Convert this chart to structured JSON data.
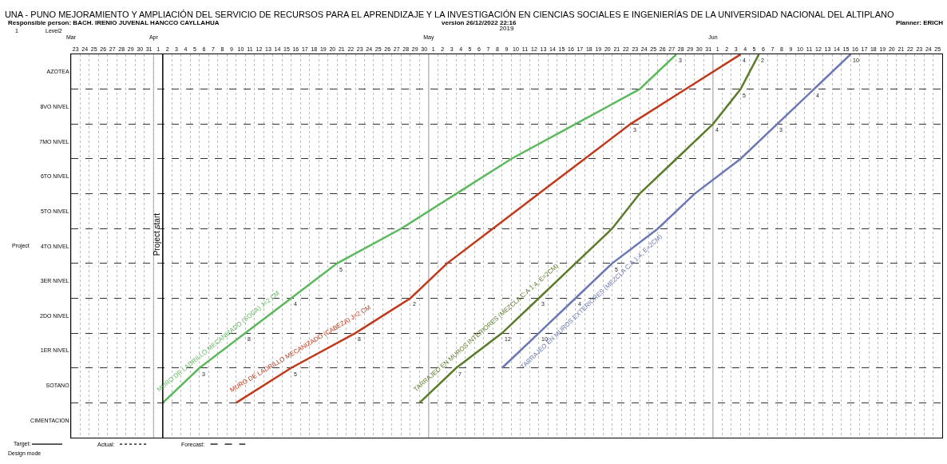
{
  "chart_data": {
    "type": "line",
    "title": "UNA - PUNO MEJORAMIENTO Y AMPLIACIÓN DEL SERVICIO DE RECURSOS PARA EL APRENDIZAJE Y LA INVESTIGACIÓN EN CIENCIAS SOCIALES E INGENIERÍAS DE LA UNIVERSIDAD NACIONAL DEL ALTIPLANO",
    "annotations": [
      "Responsible person: BACH. IRENIO JUVENAL HANCCO CAYLLAHUA",
      "version 26/12/2022 22:16",
      "Planner: ERICH",
      "1",
      "Level2",
      "Project",
      "Target:",
      "Actual:",
      "Forecast:",
      "Design mode",
      {
        "text": "3",
        "x": "2019-04-06",
        "y": 1
      },
      {
        "text": "8",
        "x": "2019-04-11",
        "y": 2
      },
      {
        "text": "4",
        "x": "2019-04-16",
        "y": 3
      },
      {
        "text": "5",
        "x": "2019-04-21",
        "y": 4
      },
      {
        "text": "3",
        "x": "2019-05-28",
        "y": 10
      },
      {
        "text": "5",
        "x": "2019-04-16",
        "y": 1
      },
      {
        "text": "8",
        "x": "2019-04-23",
        "y": 2
      },
      {
        "text": "2",
        "x": "2019-04-29",
        "y": 3
      },
      {
        "text": "3",
        "x": "2019-05-23",
        "y": 8
      },
      {
        "text": "4",
        "x": "2019-06-04",
        "y": 10
      },
      {
        "text": "7",
        "x": "2019-05-04",
        "y": 1
      },
      {
        "text": "12",
        "x": "2019-05-09",
        "y": 2
      },
      {
        "text": "3",
        "x": "2019-05-13",
        "y": 3
      },
      {
        "text": "4",
        "x": "2019-06-01",
        "y": 8
      },
      {
        "text": "5",
        "x": "2019-06-04",
        "y": 9
      },
      {
        "text": "2",
        "x": "2019-06-06",
        "y": 10
      },
      {
        "text": "10",
        "x": "2019-05-13",
        "y": 2
      },
      {
        "text": "4",
        "x": "2019-05-17",
        "y": 3
      },
      {
        "text": "5",
        "x": "2019-05-21",
        "y": 4
      },
      {
        "text": "3",
        "x": "2019-06-08",
        "y": 8
      },
      {
        "text": "4",
        "x": "2019-06-12",
        "y": 9
      },
      {
        "text": "10",
        "x": "2019-06-16",
        "y": 10
      }
    ],
    "x2label": "2019",
    "xlim": [
      "2019-03-23",
      "2019-06-26"
    ],
    "x2lim": [
      "2019-03-23",
      "2019-06-26"
    ],
    "x2ticks": [
      {
        "value": "2019-03-23",
        "label": "Mar"
      },
      {
        "value": "2019-04-01",
        "label": "Apr"
      },
      {
        "value": "2019-05-01",
        "label": "May"
      },
      {
        "value": "2019-06-01",
        "label": "Jun"
      }
    ],
    "xticks": [
      {
        "value": "2019-03-23T12:00",
        "label": "23"
      },
      {
        "value": "2019-03-24T12:00",
        "label": "24"
      },
      {
        "value": "2019-03-25T12:00",
        "label": "25"
      },
      {
        "value": "2019-03-26T12:00",
        "label": "26"
      },
      {
        "value": "2019-03-27T12:00",
        "label": "27"
      },
      {
        "value": "2019-03-28T12:00",
        "label": "28"
      },
      {
        "value": "2019-03-29T12:00",
        "label": "29"
      },
      {
        "value": "2019-03-30T12:00",
        "label": "30"
      },
      {
        "value": "2019-03-31T12:00",
        "label": "31"
      },
      {
        "value": "2019-04-01T12:00",
        "label": "1"
      },
      {
        "value": "2019-04-02T12:00",
        "label": "2"
      },
      {
        "value": "2019-04-03T12:00",
        "label": "3"
      },
      {
        "value": "2019-04-04T12:00",
        "label": "4"
      },
      {
        "value": "2019-04-05T12:00",
        "label": "5"
      },
      {
        "value": "2019-04-06T12:00",
        "label": "6"
      },
      {
        "value": "2019-04-07T12:00",
        "label": "7"
      },
      {
        "value": "2019-04-08T12:00",
        "label": "8"
      },
      {
        "value": "2019-04-09T12:00",
        "label": "9"
      },
      {
        "value": "2019-04-10T12:00",
        "label": "10"
      },
      {
        "value": "2019-04-11T12:00",
        "label": "11"
      },
      {
        "value": "2019-04-12T12:00",
        "label": "12"
      },
      {
        "value": "2019-04-13T12:00",
        "label": "13"
      },
      {
        "value": "2019-04-14T12:00",
        "label": "14"
      },
      {
        "value": "2019-04-15T12:00",
        "label": "15"
      },
      {
        "value": "2019-04-16T12:00",
        "label": "16"
      },
      {
        "value": "2019-04-17T12:00",
        "label": "17"
      },
      {
        "value": "2019-04-18T12:00",
        "label": "18"
      },
      {
        "value": "2019-04-19T12:00",
        "label": "19"
      },
      {
        "value": "2019-04-20T12:00",
        "label": "20"
      },
      {
        "value": "2019-04-21T12:00",
        "label": "21"
      },
      {
        "value": "2019-04-22T12:00",
        "label": "22"
      },
      {
        "value": "2019-04-23T12:00",
        "label": "23"
      },
      {
        "value": "2019-04-24T12:00",
        "label": "24"
      },
      {
        "value": "2019-04-25T12:00",
        "label": "25"
      },
      {
        "value": "2019-04-26T12:00",
        "label": "26"
      },
      {
        "value": "2019-04-27T12:00",
        "label": "27"
      },
      {
        "value": "2019-04-28T12:00",
        "label": "28"
      },
      {
        "value": "2019-04-29T12:00",
        "label": "29"
      },
      {
        "value": "2019-04-30T12:00",
        "label": "30"
      },
      {
        "value": "2019-05-01T12:00",
        "label": "1"
      },
      {
        "value": "2019-05-02T12:00",
        "label": "2"
      },
      {
        "value": "2019-05-03T12:00",
        "label": "3"
      },
      {
        "value": "2019-05-04T12:00",
        "label": "4"
      },
      {
        "value": "2019-05-05T12:00",
        "label": "5"
      },
      {
        "value": "2019-05-06T12:00",
        "label": "6"
      },
      {
        "value": "2019-05-07T12:00",
        "label": "7"
      },
      {
        "value": "2019-05-08T12:00",
        "label": "8"
      },
      {
        "value": "2019-05-09T12:00",
        "label": "9"
      },
      {
        "value": "2019-05-10T12:00",
        "label": "10"
      },
      {
        "value": "2019-05-11T12:00",
        "label": "11"
      },
      {
        "value": "2019-05-12T12:00",
        "label": "12"
      },
      {
        "value": "2019-05-13T12:00",
        "label": "13"
      },
      {
        "value": "2019-05-14T12:00",
        "label": "14"
      },
      {
        "value": "2019-05-15T12:00",
        "label": "15"
      },
      {
        "value": "2019-05-16T12:00",
        "label": "16"
      },
      {
        "value": "2019-05-17T12:00",
        "label": "17"
      },
      {
        "value": "2019-05-18T12:00",
        "label": "18"
      },
      {
        "value": "2019-05-19T12:00",
        "label": "19"
      },
      {
        "value": "2019-05-20T12:00",
        "label": "20"
      },
      {
        "value": "2019-05-21T12:00",
        "label": "21"
      },
      {
        "value": "2019-05-22T12:00",
        "label": "22"
      },
      {
        "value": "2019-05-23T12:00",
        "label": "23"
      },
      {
        "value": "2019-05-24T12:00",
        "label": "24"
      },
      {
        "value": "2019-05-25T12:00",
        "label": "25"
      },
      {
        "value": "2019-05-26T12:00",
        "label": "26"
      },
      {
        "value": "2019-05-27T12:00",
        "label": "27"
      },
      {
        "value": "2019-05-28T12:00",
        "label": "28"
      },
      {
        "value": "2019-05-29T12:00",
        "label": "29"
      },
      {
        "value": "2019-05-30T12:00",
        "label": "30"
      },
      {
        "value": "2019-05-31T12:00",
        "label": "31"
      },
      {
        "value": "2019-06-01T12:00",
        "label": "1"
      },
      {
        "value": "2019-06-02T12:00",
        "label": "2"
      },
      {
        "value": "2019-06-03T12:00",
        "label": "3"
      },
      {
        "value": "2019-06-04T12:00",
        "label": "4"
      },
      {
        "value": "2019-06-05T12:00",
        "label": "5"
      },
      {
        "value": "2019-06-06T12:00",
        "label": "6"
      },
      {
        "value": "2019-06-07T12:00",
        "label": "7"
      },
      {
        "value": "2019-06-08T12:00",
        "label": "8"
      },
      {
        "value": "2019-06-09T12:00",
        "label": "9"
      },
      {
        "value": "2019-06-10T12:00",
        "label": "10"
      },
      {
        "value": "2019-06-11T12:00",
        "label": "11"
      },
      {
        "value": "2019-06-12T12:00",
        "label": "12"
      },
      {
        "value": "2019-06-13T12:00",
        "label": "13"
      },
      {
        "value": "2019-06-14T12:00",
        "label": "14"
      },
      {
        "value": "2019-06-15T12:00",
        "label": "15"
      },
      {
        "value": "2019-06-16T12:00",
        "label": "16"
      },
      {
        "value": "2019-06-17T12:00",
        "label": "17"
      },
      {
        "value": "2019-06-18T12:00",
        "label": "18"
      },
      {
        "value": "2019-06-19T12:00",
        "label": "19"
      },
      {
        "value": "2019-06-20T12:00",
        "label": "20"
      },
      {
        "value": "2019-06-21T12:00",
        "label": "21"
      },
      {
        "value": "2019-06-22T12:00",
        "label": "22"
      },
      {
        "value": "2019-06-23T12:00",
        "label": "23"
      },
      {
        "value": "2019-06-24T12:00",
        "label": "24"
      },
      {
        "value": "2019-06-25T12:00",
        "label": "25"
      }
    ],
    "ylim": [
      -1,
      10
    ],
    "yticks": [
      {
        "value": -0.5,
        "label": "CIMENTACION"
      },
      {
        "value": 0.5,
        "label": "SOTANO"
      },
      {
        "value": 1.5,
        "label": "1ER NIVEL"
      },
      {
        "value": 2.5,
        "label": "2DO NIVEL"
      },
      {
        "value": 3.5,
        "label": "3ER NIVEL"
      },
      {
        "value": 4.5,
        "label": "4TO NIVEL"
      },
      {
        "value": 5.5,
        "label": "5TO NIVEL"
      },
      {
        "value": 6.5,
        "label": "6TO NIVEL"
      },
      {
        "value": 7.5,
        "label": "7MO NIVEL"
      },
      {
        "value": 8.5,
        "label": "8VO NIVEL"
      },
      {
        "value": 9.5,
        "label": "AZOTEA"
      }
    ],
    "grid": true,
    "ref_lines": [
      {
        "axis": "x",
        "value": "2019-04-02",
        "label": "Project start",
        "color": "#000000"
      }
    ],
    "series": [
      {
        "name": "MURO DE LADRILLO MECANIZADO (SOGA) J=2 CM",
        "color": "#5cb85c",
        "x": [
          "2019-04-02",
          "2019-04-06",
          "2019-04-11",
          "2019-04-16",
          "2019-04-21",
          "2019-04-28",
          "2019-05-04",
          "2019-05-10",
          "2019-05-17",
          "2019-05-24",
          "2019-05-28"
        ],
        "values": [
          0,
          1,
          2,
          3,
          4,
          5,
          6,
          7,
          8,
          9,
          10
        ]
      },
      {
        "name": "MURO DE LADRILLO MECANIZADO (CABEZA) J=2 CM",
        "color": "#c0391b",
        "x": [
          "2019-04-10",
          "2019-04-16",
          "2019-04-23",
          "2019-04-29",
          "2019-05-03",
          "2019-05-08",
          "2019-05-13",
          "2019-05-18",
          "2019-05-23",
          "2019-05-29",
          "2019-06-04"
        ],
        "values": [
          0,
          1,
          2,
          3,
          4,
          5,
          6,
          7,
          8,
          9,
          10
        ]
      },
      {
        "name": "TARRAJEO EN MUROS INTERIORES (MEZCLA C:A 1:4, E=2CM)",
        "color": "#5b7d2a",
        "x": [
          "2019-04-30",
          "2019-05-04",
          "2019-05-09",
          "2019-05-13",
          "2019-05-17",
          "2019-05-21",
          "2019-05-24",
          "2019-05-28",
          "2019-06-01",
          "2019-06-04",
          "2019-06-06"
        ],
        "values": [
          0,
          1,
          2,
          3,
          4,
          5,
          6,
          7,
          8,
          9,
          10
        ]
      },
      {
        "name": "TARRAJEO EN MUROS EXTERIORES (MEZCLA C:A 1:4, E=2CM)",
        "color": "#6a78b4",
        "x": [
          "2019-05-09",
          "2019-05-13",
          "2019-05-17",
          "2019-05-21",
          "2019-05-26",
          "2019-05-30",
          "2019-06-04",
          "2019-06-08",
          "2019-06-12",
          "2019-06-16"
        ],
        "values": [
          1,
          2,
          3,
          4,
          5,
          6,
          7,
          8,
          9,
          10
        ]
      }
    ]
  }
}
